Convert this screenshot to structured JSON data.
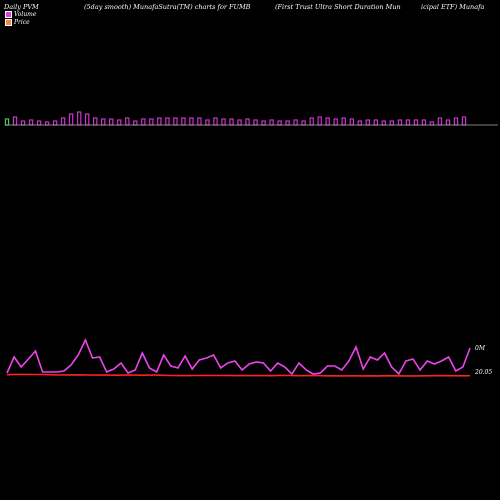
{
  "header": {
    "left": "Daily PVM",
    "mid_left": "(5day smooth) MunafaSutra(TM) charts for FUMB",
    "mid_right": "(First Trust Ultra  Short Duration  Mun",
    "right": "icipal ETF) Munafa"
  },
  "legend": {
    "volume_label": "Volume",
    "price_label": "Price",
    "volume_color": "#e040e0",
    "price_color": "#ff8040"
  },
  "colors": {
    "background": "#000000",
    "volume_bar": "#cc33cc",
    "volume_up_bar": "#44cc44",
    "baseline": "#aaaaaa",
    "volume_line": "#ee44ee",
    "price_line": "#ff2222"
  },
  "chart_data": {
    "type": "bar",
    "volume_bars": [
      6,
      8,
      4,
      5,
      4,
      3,
      4,
      7,
      11,
      13,
      11,
      7,
      6,
      6,
      5,
      7,
      4,
      6,
      6,
      7,
      7,
      7,
      7,
      7,
      7,
      5,
      7,
      6,
      6,
      5,
      6,
      5,
      4,
      5,
      4,
      4,
      5,
      4,
      7,
      8,
      7,
      6,
      7,
      6,
      4,
      5,
      5,
      4,
      4,
      5,
      5,
      5,
      5,
      3,
      7,
      5,
      7,
      8
    ],
    "first_bar_color": "#44cc44",
    "volume_line": [
      2,
      18,
      8,
      16,
      24,
      3,
      3,
      3,
      4,
      10,
      20,
      35,
      17,
      18,
      3,
      6,
      12,
      2,
      5,
      22,
      7,
      3,
      20,
      9,
      7,
      19,
      6,
      15,
      17,
      20,
      7,
      12,
      14,
      5,
      11,
      13,
      12,
      4,
      12,
      8,
      1,
      12,
      5,
      1,
      2,
      9,
      9,
      5,
      14,
      28,
      6,
      18,
      15,
      22,
      8,
      1,
      14,
      16,
      5,
      14,
      11,
      14,
      18,
      4,
      8,
      27
    ],
    "price_line": [
      1.3,
      1.6,
      1.6,
      1.5,
      1.5,
      1.2,
      1.0,
      1.1,
      1.2,
      1.0,
      0.9,
      1.0,
      0.8,
      0.9,
      0.9,
      0.8,
      1.0,
      0.8,
      0.5,
      0.4,
      0.4,
      0.5,
      0.6,
      0.5,
      0.6,
      0.4,
      0.5,
      0.4,
      0.5,
      0.3,
      0.6,
      0.5,
      0.3,
      0.4,
      0.5,
      0.2,
      0.2,
      0.1,
      0.2,
      0.1,
      0.2,
      0.1,
      0.3,
      0.2,
      0.1,
      0.1,
      0.2,
      0.3,
      0.3,
      0.3,
      0.2,
      0.3
    ],
    "price_label": "20.05",
    "volume_label": "0M"
  }
}
